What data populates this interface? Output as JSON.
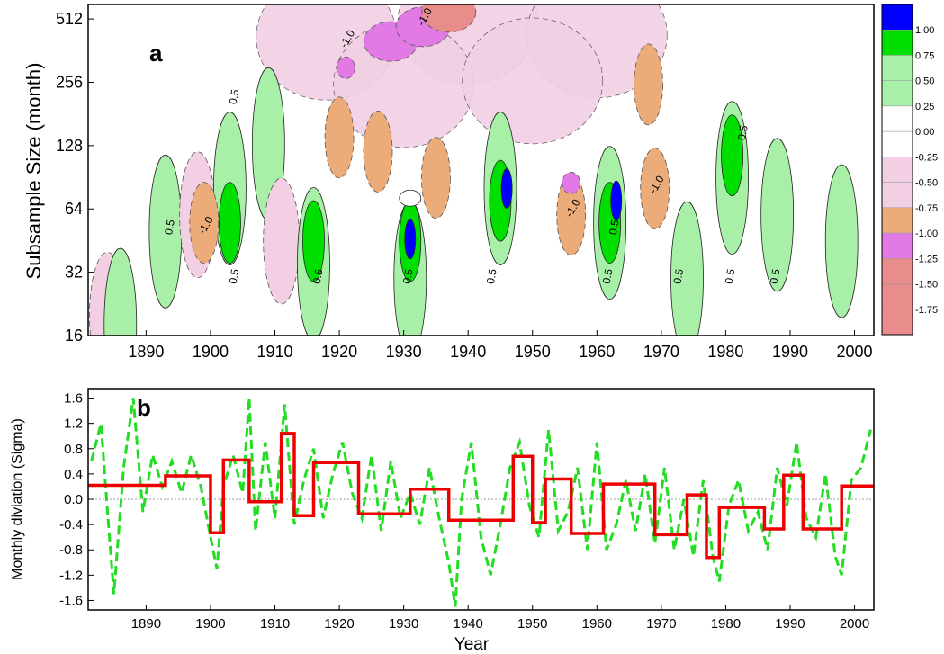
{
  "chart_data": [
    {
      "panel_label": "a",
      "type": "heatmap",
      "ylabel": "Subsample Size (month)",
      "x_ticks": [
        1890,
        1900,
        1910,
        1920,
        1930,
        1940,
        1950,
        1960,
        1970,
        1980,
        1990,
        2000
      ],
      "y_ticks": [
        16,
        32,
        64,
        128,
        256,
        512
      ],
      "y_scale": "log2",
      "xlim": [
        1881,
        2003
      ],
      "ylim": [
        16,
        600
      ],
      "colorbar": {
        "position": "right",
        "levels": [
          "1.00",
          "0.75",
          "0.50",
          "0.25",
          "0.00",
          "-0.25",
          "-0.50",
          "-0.75",
          "-1.00",
          "-1.25",
          "-1.50",
          "-1.75"
        ],
        "colors": [
          "#0000ff",
          "#00e000",
          "#a8f0a8",
          "#a8f0a8",
          "#ffffff",
          "#ffffff",
          "#f2cfe3",
          "#f2cfe3",
          "#ecac7a",
          "#e27ae6",
          "#e88c8c",
          "#e88c8c"
        ]
      },
      "contour_labels": [
        "0.5",
        "-1.0"
      ],
      "blobs": [
        {
          "x": 1884,
          "y": 20,
          "v": -0.5
        },
        {
          "x": 1886,
          "y": 18,
          "v": 0.5
        },
        {
          "x": 1893,
          "y": 50,
          "v": 0.5
        },
        {
          "x": 1898,
          "y": 60,
          "v": -0.5
        },
        {
          "x": 1899,
          "y": 55,
          "v": -0.75
        },
        {
          "x": 1903,
          "y": 80,
          "v": 0.5
        },
        {
          "x": 1903,
          "y": 55,
          "v": 0.75
        },
        {
          "x": 1909,
          "y": 130,
          "v": 0.5
        },
        {
          "x": 1911,
          "y": 45,
          "v": -0.5
        },
        {
          "x": 1916,
          "y": 35,
          "v": 0.5
        },
        {
          "x": 1916,
          "y": 45,
          "v": 0.75
        },
        {
          "x": 1920,
          "y": 140,
          "v": -0.75
        },
        {
          "x": 1921,
          "y": 300,
          "v": -1.0
        },
        {
          "x": 1926,
          "y": 120,
          "v": -0.75
        },
        {
          "x": 1931,
          "y": 30,
          "v": 0.5
        },
        {
          "x": 1931,
          "y": 45,
          "v": 0.75
        },
        {
          "x": 1931,
          "y": 46,
          "v": 1.0
        },
        {
          "x": 1935,
          "y": 90,
          "v": -0.75
        },
        {
          "x": 1928,
          "y": 400,
          "v": -1.25
        },
        {
          "x": 1933,
          "y": 470,
          "v": -1.25
        },
        {
          "x": 1937,
          "y": 550,
          "v": -1.5
        },
        {
          "x": 1945,
          "y": 80,
          "v": 0.5
        },
        {
          "x": 1945,
          "y": 70,
          "v": 0.75
        },
        {
          "x": 1946,
          "y": 80,
          "v": 1.0
        },
        {
          "x": 1956,
          "y": 60,
          "v": -0.75
        },
        {
          "x": 1956,
          "y": 85,
          "v": -1.0
        },
        {
          "x": 1962,
          "y": 55,
          "v": 0.5
        },
        {
          "x": 1962,
          "y": 55,
          "v": 0.75
        },
        {
          "x": 1963,
          "y": 70,
          "v": 1.0
        },
        {
          "x": 1968,
          "y": 250,
          "v": -0.75
        },
        {
          "x": 1969,
          "y": 80,
          "v": -0.75
        },
        {
          "x": 1974,
          "y": 30,
          "v": 0.5
        },
        {
          "x": 1981,
          "y": 90,
          "v": 0.5
        },
        {
          "x": 1981,
          "y": 115,
          "v": 0.75
        },
        {
          "x": 1988,
          "y": 60,
          "v": 0.5
        },
        {
          "x": 1998,
          "y": 45,
          "v": 0.5
        }
      ]
    },
    {
      "panel_label": "b",
      "type": "line",
      "xlabel": "Year",
      "ylabel": "Monthly diviation (Sigma)",
      "x_ticks": [
        1890,
        1900,
        1910,
        1920,
        1930,
        1940,
        1950,
        1960,
        1970,
        1980,
        1990,
        2000
      ],
      "y_ticks": [
        1.6,
        1.2,
        0.8,
        0.4,
        0.0,
        -0.4,
        -0.8,
        -1.2,
        -1.6
      ],
      "xlim": [
        1881,
        2003
      ],
      "ylim": [
        -1.75,
        1.75
      ],
      "series": [
        {
          "style": "dashed",
          "color": "#22dd22",
          "x": [
            1881.5,
            1883.0,
            1884.0,
            1885.0,
            1886.5,
            1888.0,
            1889.5,
            1891.0,
            1892.5,
            1894.0,
            1895.5,
            1897.0,
            1898.5,
            1900.0,
            1901.0,
            1902.0,
            1903.5,
            1905.0,
            1906.0,
            1907.0,
            1908.5,
            1910.0,
            1911.5,
            1913.0,
            1914.5,
            1916.0,
            1917.5,
            1919.0,
            1920.5,
            1922.0,
            1923.5,
            1925.0,
            1926.5,
            1928.0,
            1929.5,
            1931.0,
            1932.5,
            1934.0,
            1935.5,
            1937.0,
            1938.0,
            1939.0,
            1940.5,
            1942.0,
            1943.5,
            1945.0,
            1946.5,
            1948.0,
            1949.5,
            1951.0,
            1952.5,
            1954.0,
            1955.5,
            1957.0,
            1958.5,
            1960.0,
            1961.5,
            1963.0,
            1964.5,
            1966.0,
            1967.5,
            1969.0,
            1970.5,
            1972.0,
            1973.5,
            1975.0,
            1976.5,
            1978.0,
            1979.0,
            1980.5,
            1982.0,
            1983.5,
            1985.0,
            1986.5,
            1988.0,
            1989.5,
            1991.0,
            1992.5,
            1994.0,
            1995.5,
            1997.0,
            1998.0,
            1999.5,
            2001.0,
            2002.5
          ],
          "values": [
            0.6,
            1.2,
            -0.2,
            -1.5,
            0.5,
            1.6,
            -0.2,
            0.7,
            0.2,
            0.6,
            0.1,
            0.7,
            0.2,
            -0.6,
            -1.1,
            0.2,
            0.7,
            0.1,
            1.6,
            -0.5,
            0.9,
            -0.3,
            1.5,
            -0.4,
            0.3,
            0.8,
            -0.3,
            0.4,
            0.9,
            0.1,
            -0.3,
            0.7,
            -0.5,
            0.6,
            -0.3,
            0.1,
            -0.4,
            0.5,
            -0.3,
            -1.0,
            -1.7,
            0.0,
            0.9,
            -0.6,
            -1.2,
            -0.4,
            0.5,
            0.9,
            -0.1,
            -0.6,
            1.1,
            -0.5,
            -0.2,
            0.5,
            -0.8,
            0.9,
            -0.8,
            -0.4,
            0.3,
            -0.5,
            0.4,
            -0.7,
            0.5,
            -0.8,
            0.0,
            -0.9,
            0.3,
            -0.9,
            -1.3,
            -0.1,
            0.3,
            -0.5,
            -0.2,
            -0.8,
            0.5,
            -0.1,
            0.9,
            -0.3,
            -0.6,
            0.4,
            -0.9,
            -1.2,
            0.3,
            0.5,
            1.1
          ]
        },
        {
          "style": "step",
          "color": "#ee0000",
          "x": [
            1881,
            1893,
            1900,
            1902,
            1906,
            1911,
            1913,
            1916,
            1923,
            1931,
            1937,
            1947,
            1950,
            1952,
            1956,
            1961,
            1969,
            1974,
            1977,
            1979,
            1983,
            1986,
            1989,
            1992,
            1998,
            2003
          ],
          "values": [
            0.22,
            0.37,
            -0.53,
            0.62,
            -0.04,
            1.04,
            -0.26,
            0.58,
            -0.23,
            0.16,
            -0.33,
            0.68,
            -0.37,
            0.32,
            -0.54,
            0.24,
            -0.56,
            0.07,
            -0.92,
            -0.13,
            -0.13,
            -0.47,
            0.38,
            -0.47,
            0.21,
            0.21
          ]
        }
      ]
    }
  ]
}
